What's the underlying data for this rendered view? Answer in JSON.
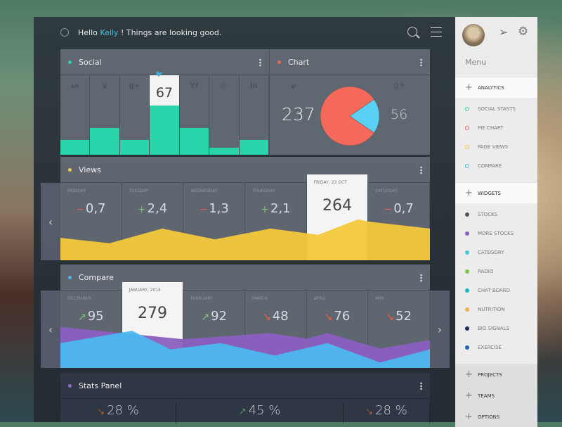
{
  "header": {
    "greeting_pre": "Hello ",
    "user": "Kelly",
    "greeting_post": " ! Things are looking good."
  },
  "social": {
    "title": "Social",
    "color": "#2ad4ab",
    "icons": [
      "soundcloud-icon",
      "vimeo-icon",
      "google-plus-icon",
      "twitter-icon",
      "yahoo-icon",
      "dribbble-icon",
      "linkedin-icon"
    ],
    "glyphs": [
      "ᔕ",
      "v",
      "g+",
      "🐦",
      "Y!",
      "◎",
      "in"
    ],
    "highlight_index": 3,
    "highlight_value": "67",
    "bar_levels": [
      20,
      36,
      20,
      67,
      36,
      10,
      20
    ]
  },
  "chart": {
    "title": "Chart",
    "color": "#f0675a",
    "left_icon": "v",
    "left_value": "237",
    "right_icon": "g+",
    "right_value": "56",
    "pie": [
      {
        "value": 237,
        "color": "#f5695a"
      },
      {
        "value": 56,
        "color": "#5bd0f5"
      }
    ]
  },
  "views": {
    "title": "Views",
    "color": "#f3c83a",
    "days": [
      {
        "label": "MONDAY",
        "sign": "−",
        "value": "0,7"
      },
      {
        "label": "TUESDAY",
        "sign": "+",
        "value": "2,4"
      },
      {
        "label": "WEDNESDAY",
        "sign": "−",
        "value": "1,3"
      },
      {
        "label": "THURSDAY",
        "sign": "+",
        "value": "2,1"
      },
      {
        "label": "FRIDAY, 23 OCT",
        "sign": "",
        "value": "264"
      },
      {
        "label": "SATURDAY",
        "sign": "−",
        "value": "0,7"
      }
    ],
    "highlight_index": 4,
    "trend": [
      29,
      22,
      41,
      27,
      41,
      33,
      53,
      50,
      41
    ]
  },
  "compare": {
    "title": "Compare",
    "color": "#4cb8ef",
    "months": [
      {
        "label": "DECEMBER",
        "dir": "up",
        "value": "95"
      },
      {
        "label": "JANUARY, 2014",
        "dir": "",
        "value": "279"
      },
      {
        "label": "FEBRUARY",
        "dir": "up",
        "value": "92"
      },
      {
        "label": "MARCH",
        "dir": "down",
        "value": "48"
      },
      {
        "label": "APRIL",
        "dir": "down",
        "value": "76"
      },
      {
        "label": "MAY",
        "dir": "down",
        "value": "52"
      }
    ],
    "highlight_index": 1,
    "purple": [
      53,
      45,
      37,
      45,
      38,
      45,
      25,
      36
    ],
    "blue": [
      32,
      48,
      24,
      32,
      16,
      32,
      7,
      24
    ]
  },
  "stats": {
    "title": "Stats Panel",
    "color": "#8b6bc9",
    "values": [
      {
        "dir": "down",
        "value": "28 %"
      },
      {
        "dir": "up",
        "value": "45 %"
      },
      {
        "dir": "down",
        "value": "28 %"
      }
    ]
  },
  "sidebar": {
    "menu": "Menu",
    "sections": [
      {
        "label": "ANALYTICS",
        "items": [
          {
            "label": "SOCIAL STASTS",
            "color": "#2ad4ab"
          },
          {
            "label": "PIE CHART",
            "color": "#f0675a"
          },
          {
            "label": "PAGE VIEWS",
            "color": "#f3c83a"
          },
          {
            "label": "COMPARE",
            "color": "#4cb8ef"
          }
        ]
      },
      {
        "label": "WIDGETS",
        "items": [
          {
            "label": "STOCKS",
            "color": "#555555"
          },
          {
            "label": "MORE STOCKS",
            "color": "#8b5cb8"
          },
          {
            "label": "CATEGORY",
            "color": "#4cc8d8"
          },
          {
            "label": "RADIO",
            "color": "#7cc84c"
          },
          {
            "label": "CHAT BOARD",
            "color": "#1cb8c0"
          },
          {
            "label": "NUTRITION",
            "color": "#f0b04c"
          },
          {
            "label": "BIO SIGNALS",
            "color": "#1e2a60"
          },
          {
            "label": "EXERCISE",
            "color": "#1e66a8"
          }
        ]
      },
      {
        "label": "PROJECTS",
        "items": []
      },
      {
        "label": "TEAMS",
        "items": []
      },
      {
        "label": "OPTIONS",
        "items": []
      }
    ]
  }
}
